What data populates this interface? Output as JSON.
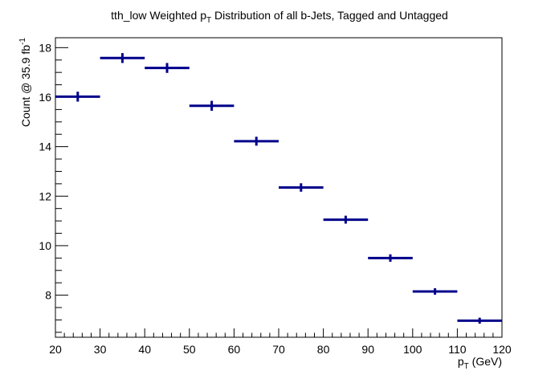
{
  "chart_data": {
    "type": "scatter",
    "title_main": "tth_low Weighted p",
    "title_sub": "T",
    "title_rest": " Distribution of all b-Jets, Tagged and Untagged",
    "xlabel_main": "p",
    "xlabel_sub": "T",
    "xlabel_rest": " (GeV)",
    "ylabel_main": "Count @ 35.9 fb",
    "ylabel_sup": "-1",
    "xlim": [
      20,
      120
    ],
    "ylim": [
      6.3,
      18.4
    ],
    "x_ticks": [
      20,
      30,
      40,
      50,
      60,
      70,
      80,
      90,
      100,
      110,
      120
    ],
    "x_tick_labels": [
      "20",
      "30",
      "40",
      "50",
      "60",
      "70",
      "80",
      "90",
      "100",
      "110",
      "120"
    ],
    "y_ticks": [
      8,
      10,
      12,
      14,
      16,
      18
    ],
    "y_tick_labels": [
      "8",
      "10",
      "12",
      "14",
      "16",
      "18"
    ],
    "grid": false,
    "color": "#00008b",
    "x": [
      25,
      35,
      45,
      55,
      65,
      75,
      85,
      95,
      105,
      115
    ],
    "x_err": [
      5,
      5,
      5,
      5,
      5,
      5,
      5,
      5,
      5,
      5
    ],
    "y": [
      16.02,
      17.58,
      17.18,
      15.65,
      14.22,
      12.35,
      11.05,
      9.5,
      8.15,
      6.97
    ],
    "y_err": [
      0.2,
      0.2,
      0.2,
      0.2,
      0.18,
      0.17,
      0.16,
      0.15,
      0.13,
      0.12
    ]
  }
}
